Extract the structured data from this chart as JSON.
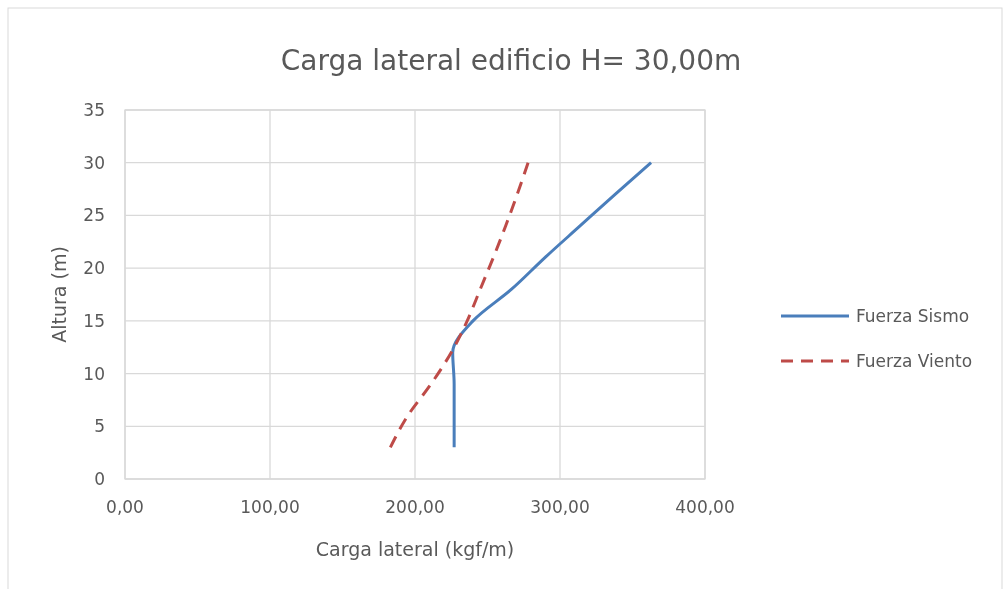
{
  "chart_data": {
    "type": "line",
    "title": "Carga lateral edificio H= 30,00m",
    "xlabel": "Carga lateral (kgf/m)",
    "ylabel": "Altura (m)",
    "xlim": [
      0,
      400
    ],
    "xticks": [
      {
        "value": 0,
        "label": "0,00"
      },
      {
        "value": 100,
        "label": "100,00"
      },
      {
        "value": 200,
        "label": "200,00"
      },
      {
        "value": 300,
        "label": "300,00"
      },
      {
        "value": 400,
        "label": "400,00"
      }
    ],
    "ylim": [
      0,
      35
    ],
    "yticks": [
      0,
      5,
      10,
      15,
      20,
      25,
      30,
      35
    ],
    "grid": true,
    "legend": "right",
    "series": [
      {
        "name": "Fuerza Sismo",
        "color": "#4a7ebb",
        "line_style": "solid",
        "x": [
          227,
          227,
          227,
          226,
          240,
          266.6,
          289.6,
          313.8,
          338,
          362.8
        ],
        "values": [
          3,
          6,
          9,
          12,
          15,
          18,
          21,
          24,
          27,
          30
        ]
      },
      {
        "name": "Fuerza Viento",
        "color": "#be4b48",
        "line_style": "dashed",
        "x": [
          183,
          195,
          211,
          225,
          236,
          245,
          254,
          262.5,
          270.5,
          278
        ],
        "values": [
          3,
          6,
          9,
          12,
          15,
          18,
          21,
          24,
          27,
          30
        ]
      }
    ]
  }
}
